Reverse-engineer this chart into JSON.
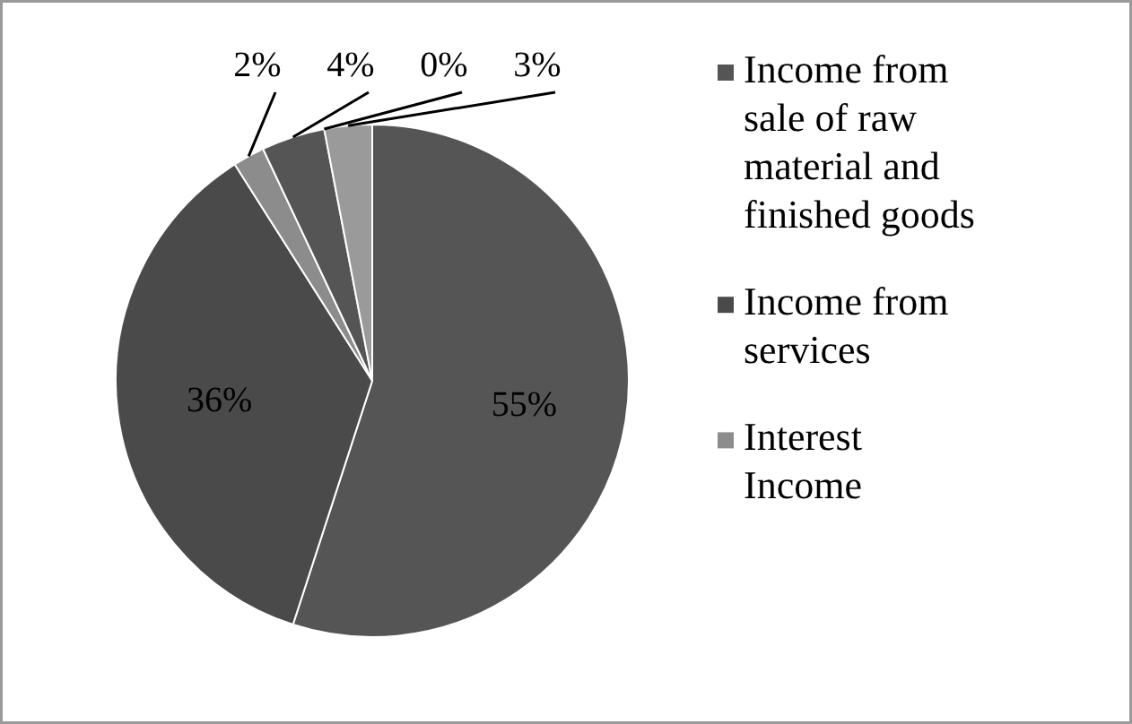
{
  "chart_data": {
    "type": "pie",
    "categories": [
      "Income from sale of raw material and finished goods",
      "Income from services",
      "Interest Income",
      null,
      null,
      null
    ],
    "values": [
      55,
      36,
      2,
      4,
      0,
      3
    ],
    "value_labels": [
      "55%",
      "36%",
      "2%",
      "4%",
      "0%",
      "3%"
    ],
    "colors": [
      "#555555",
      "#4a4a4a",
      "#8c8c8c",
      "#555555",
      "#6e6e6e",
      "#9a9a9a"
    ],
    "legend": "right"
  }
}
